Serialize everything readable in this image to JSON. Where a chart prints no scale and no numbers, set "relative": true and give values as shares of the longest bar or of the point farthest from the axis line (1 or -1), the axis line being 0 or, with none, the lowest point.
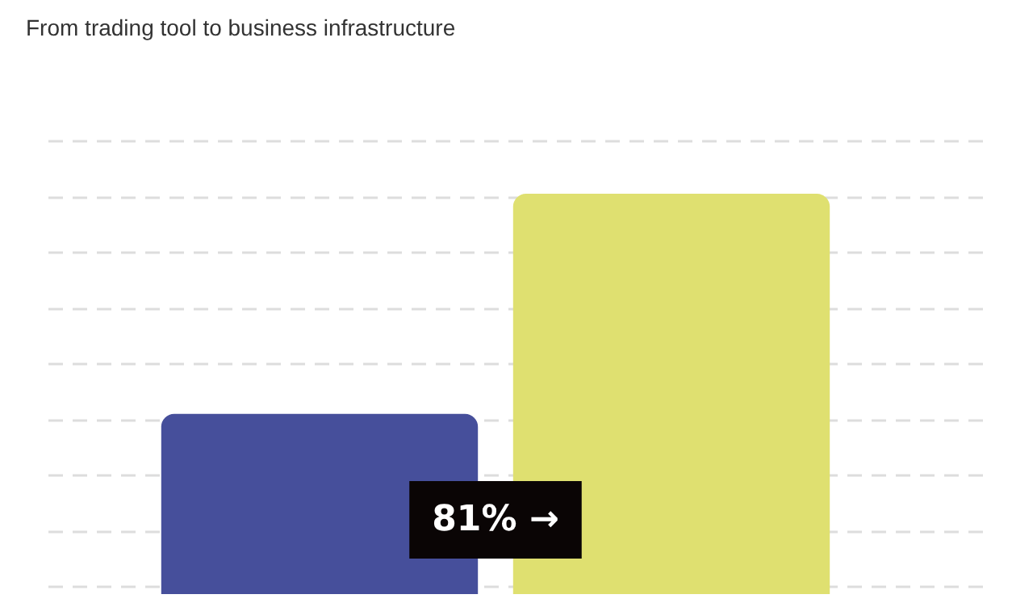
{
  "chart_data": {
    "type": "bar",
    "title": "From trading tool to business infrastructure",
    "categories": [
      null,
      null
    ],
    "values": [
      0.45,
      1
    ],
    "colors": [
      "#464f9b",
      "#dfe070"
    ],
    "relative": true,
    "grid": "y",
    "legend": false,
    "annotations": [
      "81% →"
    ]
  }
}
